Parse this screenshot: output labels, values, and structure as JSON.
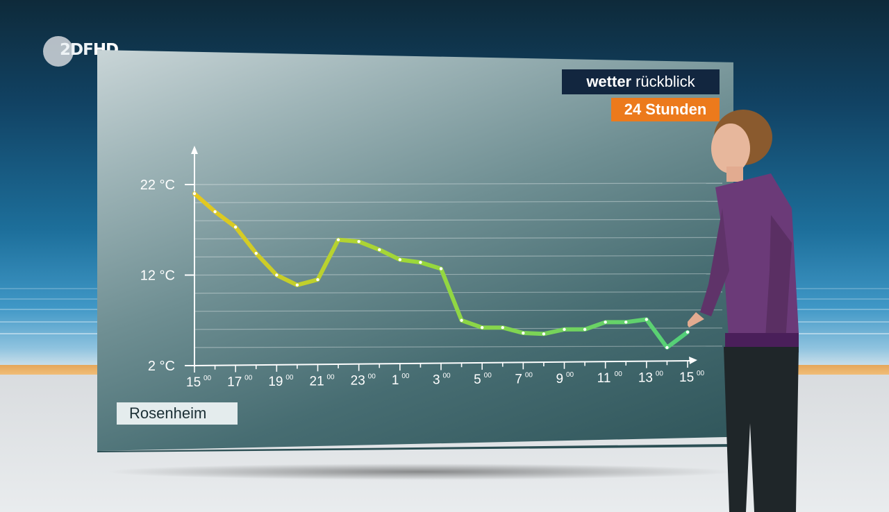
{
  "broadcaster": {
    "logo_text": "2DF",
    "logo_hd": "HD"
  },
  "brand": {
    "bold": "wetter",
    "regular": "rückblick"
  },
  "period_badge": "24 Stunden",
  "location_label": "Rosenheim",
  "colors": {
    "line_start": "#e6c81e",
    "line_end": "#52d07a",
    "badge": "#ec7a1c",
    "brand_bg": "#12263f"
  },
  "chart_data": {
    "type": "line",
    "title": "",
    "xlabel": "",
    "ylabel": "",
    "ylim": [
      2,
      22
    ],
    "y_ticks": [
      {
        "value": 2,
        "label": "2 °C"
      },
      {
        "value": 12,
        "label": "12 °C"
      },
      {
        "value": 22,
        "label": "22 °C"
      }
    ],
    "x_ticks": [
      {
        "hour": 0,
        "label": "15",
        "sup": "00"
      },
      {
        "hour": 2,
        "label": "17",
        "sup": "00"
      },
      {
        "hour": 4,
        "label": "19",
        "sup": "00"
      },
      {
        "hour": 6,
        "label": "21",
        "sup": "00"
      },
      {
        "hour": 8,
        "label": "23",
        "sup": "00"
      },
      {
        "hour": 10,
        "label": "1",
        "sup": "00"
      },
      {
        "hour": 12,
        "label": "3",
        "sup": "00"
      },
      {
        "hour": 14,
        "label": "5",
        "sup": "00"
      },
      {
        "hour": 16,
        "label": "7",
        "sup": "00"
      },
      {
        "hour": 18,
        "label": "9",
        "sup": "00"
      },
      {
        "hour": 20,
        "label": "11",
        "sup": "00"
      },
      {
        "hour": 22,
        "label": "13",
        "sup": "00"
      },
      {
        "hour": 24,
        "label": "15",
        "sup": "00"
      }
    ],
    "grid": true,
    "series": [
      {
        "values": [
          21.0,
          19.0,
          17.3,
          14.4,
          12.0,
          10.9,
          11.5,
          15.9,
          15.7,
          14.8,
          13.7,
          13.4,
          12.7,
          7.0,
          6.2,
          6.2,
          5.6,
          5.5,
          6.0,
          6.0,
          6.8,
          6.8,
          7.1,
          4.0,
          5.7
        ]
      }
    ]
  }
}
